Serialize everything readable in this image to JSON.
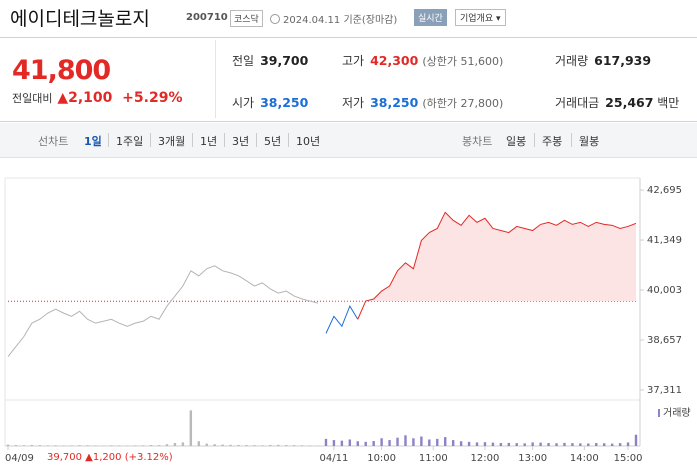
{
  "header": {
    "title": "에이디테크놀로지",
    "code": "200710",
    "market": "코스닥",
    "date": "2024.04.11",
    "basis": "기준(장마감)",
    "realtime": "실시간",
    "company_info": "기업개요"
  },
  "price": {
    "current": "41,800",
    "change_label": "전일대비",
    "change": "2,100",
    "rate": "+5.29%"
  },
  "stats": [
    {
      "label": "전일",
      "value": "39,700"
    },
    {
      "label": "고가",
      "value": "42,300",
      "note": "(상한가 51,600)"
    },
    {
      "label": "거래량",
      "value": "617,939"
    },
    {
      "label": "시가",
      "value": "38,250"
    },
    {
      "label": "저가",
      "value": "38,250",
      "note": "(하한가 27,800)"
    },
    {
      "label": "거래대금",
      "value": "25,467",
      "unit": "백만"
    }
  ],
  "tabs": {
    "line_label": "선차트",
    "line_periods": [
      "1일",
      "1주일",
      "3개월",
      "1년",
      "3년",
      "5년",
      "10년"
    ],
    "candle_label": "봉차트",
    "candle_periods": [
      "일봉",
      "주봉",
      "월봉"
    ]
  },
  "chart_data": {
    "type": "line",
    "ylim": [
      37040,
      43020
    ],
    "yticks": [
      {
        "value": 42695,
        "label": "42,695"
      },
      {
        "value": 41349,
        "label": "41,349"
      },
      {
        "value": 40003,
        "label": "40,003"
      },
      {
        "value": 38657,
        "label": "38,657"
      },
      {
        "value": 37311,
        "label": "37,311"
      }
    ],
    "xlim": [
      0,
      79
    ],
    "xticks": [
      {
        "value": 0,
        "label": "04/09"
      },
      {
        "value": 41,
        "label": "04/11"
      },
      {
        "value": 47,
        "label": "10:00"
      },
      {
        "value": 53.5,
        "label": "11:00"
      },
      {
        "value": 60,
        "label": "12:00"
      },
      {
        "value": 66,
        "label": "13:00"
      },
      {
        "value": 72.5,
        "label": "14:00"
      },
      {
        "value": 78,
        "label": "15:00"
      }
    ],
    "base": 39700,
    "series": [
      {
        "color": "#b4b4b4",
        "values": [
          38210,
          38480,
          38750,
          39110,
          39215,
          39380,
          39485,
          39380,
          39295,
          39430,
          39215,
          39110,
          39160,
          39215,
          39110,
          39025,
          39110,
          39160,
          39295,
          39215,
          39570,
          39840,
          40110,
          40520,
          40385,
          40575,
          40655,
          40520,
          40465,
          40385,
          40250,
          40110,
          40195,
          40030,
          39920,
          39975,
          39840,
          39760,
          39705,
          39650,
          null,
          null,
          null,
          null,
          null,
          null,
          null,
          null,
          null,
          null,
          null,
          null,
          null,
          null,
          null,
          null,
          null,
          null,
          null,
          null,
          null,
          null,
          null,
          null,
          null,
          null,
          null,
          null,
          null,
          null,
          null,
          null,
          null,
          null,
          null,
          null,
          null,
          null,
          null,
          null
        ]
      },
      {
        "up_color": "#e22926",
        "down_color": "#1a6ed8",
        "fill": "#fde4e4",
        "values": [
          null,
          null,
          null,
          null,
          null,
          null,
          null,
          null,
          null,
          null,
          null,
          null,
          null,
          null,
          null,
          null,
          null,
          null,
          null,
          null,
          null,
          null,
          null,
          null,
          null,
          null,
          null,
          null,
          null,
          null,
          null,
          null,
          null,
          null,
          null,
          null,
          null,
          null,
          null,
          null,
          38835,
          39295,
          39025,
          39570,
          39215,
          39705,
          39760,
          39975,
          40110,
          40520,
          40735,
          40575,
          41335,
          41550,
          41660,
          42095,
          41880,
          41745,
          42015,
          41825,
          41935,
          41660,
          41605,
          41550,
          41715,
          41660,
          41605,
          41770,
          41825,
          41745,
          41880,
          41770,
          41825,
          41715,
          41825,
          41770,
          41745,
          41660,
          41715,
          41800
        ]
      }
    ],
    "volume": {
      "label": "거래량",
      "ylim": [
        0,
        32000
      ],
      "prev_color": "#b9b9b9",
      "today_color": "#8d82c8",
      "values": [
        1200,
        800,
        600,
        900,
        700,
        500,
        600,
        400,
        500,
        700,
        600,
        500,
        400,
        600,
        500,
        400,
        500,
        600,
        800,
        700,
        1500,
        2500,
        3000,
        30000,
        4000,
        2000,
        1500,
        1200,
        1000,
        900,
        800,
        700,
        600,
        900,
        1000,
        800,
        700,
        600,
        500,
        400,
        6000,
        5000,
        4500,
        5500,
        4000,
        3500,
        4200,
        6500,
        5000,
        7000,
        9000,
        6500,
        8000,
        5500,
        6000,
        7500,
        5000,
        4000,
        3500,
        3000,
        3200,
        2800,
        2500,
        2600,
        2400,
        2200,
        3000,
        2800,
        2500,
        2300,
        2600,
        2400,
        2200,
        2100,
        2500,
        2300,
        2000,
        2400,
        3000,
        9500
      ]
    }
  },
  "chart_footer": {
    "price": "39,700",
    "change": "1,200",
    "rate": "(+3.12%)"
  }
}
